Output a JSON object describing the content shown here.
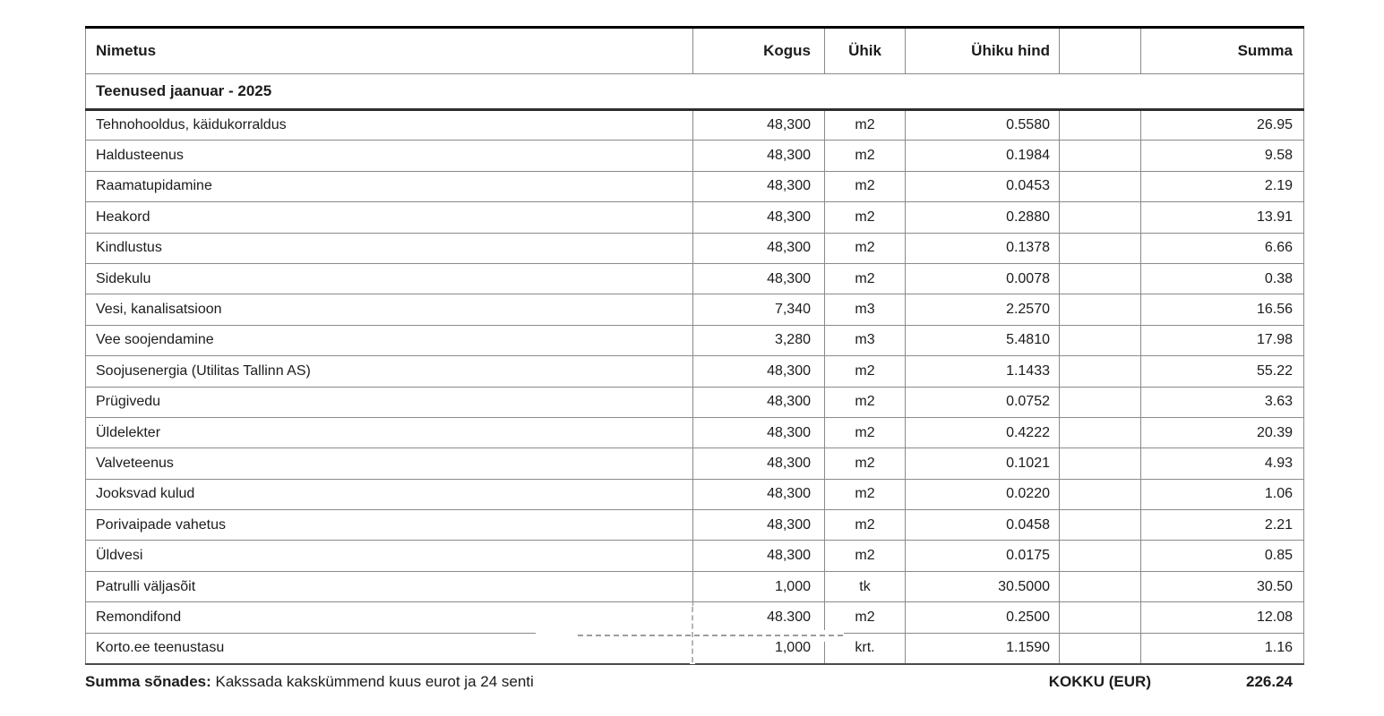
{
  "table": {
    "columns": [
      {
        "label": "Nimetus"
      },
      {
        "label": "Kogus"
      },
      {
        "label": "Ühik"
      },
      {
        "label": "Ühiku hind"
      },
      {
        "label": ""
      },
      {
        "label": "Summa"
      }
    ],
    "section_title": "Teenused jaanuar - 2025",
    "rows": [
      {
        "name": "Tehnohooldus, käidukorraldus",
        "kogus": "48,300",
        "yhik": "m2",
        "hind": "0.5580",
        "extra": "",
        "summa": "26.95"
      },
      {
        "name": "Haldusteenus",
        "kogus": "48,300",
        "yhik": "m2",
        "hind": "0.1984",
        "extra": "",
        "summa": "9.58"
      },
      {
        "name": "Raamatupidamine",
        "kogus": "48,300",
        "yhik": "m2",
        "hind": "0.0453",
        "extra": "",
        "summa": "2.19"
      },
      {
        "name": "Heakord",
        "kogus": "48,300",
        "yhik": "m2",
        "hind": "0.2880",
        "extra": "",
        "summa": "13.91"
      },
      {
        "name": "Kindlustus",
        "kogus": "48,300",
        "yhik": "m2",
        "hind": "0.1378",
        "extra": "",
        "summa": "6.66"
      },
      {
        "name": "Sidekulu",
        "kogus": "48,300",
        "yhik": "m2",
        "hind": "0.0078",
        "extra": "",
        "summa": "0.38"
      },
      {
        "name": "Vesi, kanalisatsioon",
        "kogus": "7,340",
        "yhik": "m3",
        "hind": "2.2570",
        "extra": "",
        "summa": "16.56"
      },
      {
        "name": "Vee soojendamine",
        "kogus": "3,280",
        "yhik": "m3",
        "hind": "5.4810",
        "extra": "",
        "summa": "17.98"
      },
      {
        "name": "Soojusenergia (Utilitas Tallinn AS)",
        "kogus": "48,300",
        "yhik": "m2",
        "hind": "1.1433",
        "extra": "",
        "summa": "55.22"
      },
      {
        "name": "Prügivedu",
        "kogus": "48,300",
        "yhik": "m2",
        "hind": "0.0752",
        "extra": "",
        "summa": "3.63"
      },
      {
        "name": "Üldelekter",
        "kogus": "48,300",
        "yhik": "m2",
        "hind": "0.4222",
        "extra": "",
        "summa": "20.39"
      },
      {
        "name": "Valveteenus",
        "kogus": "48,300",
        "yhik": "m2",
        "hind": "0.1021",
        "extra": "",
        "summa": "4.93"
      },
      {
        "name": "Jooksvad kulud",
        "kogus": "48,300",
        "yhik": "m2",
        "hind": "0.0220",
        "extra": "",
        "summa": "1.06"
      },
      {
        "name": "Porivaipade vahetus",
        "kogus": "48,300",
        "yhik": "m2",
        "hind": "0.0458",
        "extra": "",
        "summa": "2.21"
      },
      {
        "name": "Üldvesi",
        "kogus": "48,300",
        "yhik": "m2",
        "hind": "0.0175",
        "extra": "",
        "summa": "0.85"
      },
      {
        "name": "Patrulli väljasõit",
        "kogus": "1,000",
        "yhik": "tk",
        "hind": "30.5000",
        "extra": "",
        "summa": "30.50"
      },
      {
        "name": "Remondifond",
        "kogus": "48,300",
        "yhik": "m2",
        "hind": "0.2500",
        "extra": "",
        "summa": "12.08"
      },
      {
        "name": "Korto.ee teenustasu",
        "kogus": "1,000",
        "yhik": "krt.",
        "hind": "1.1590",
        "extra": "",
        "summa": "1.16"
      }
    ]
  },
  "footer": {
    "words_label": "Summa sõnades: ",
    "words_text": "Kakssada kakskümmend kuus eurot ja 24 senti",
    "total_label": "KOKKU (EUR)",
    "total_value": "226.24"
  }
}
